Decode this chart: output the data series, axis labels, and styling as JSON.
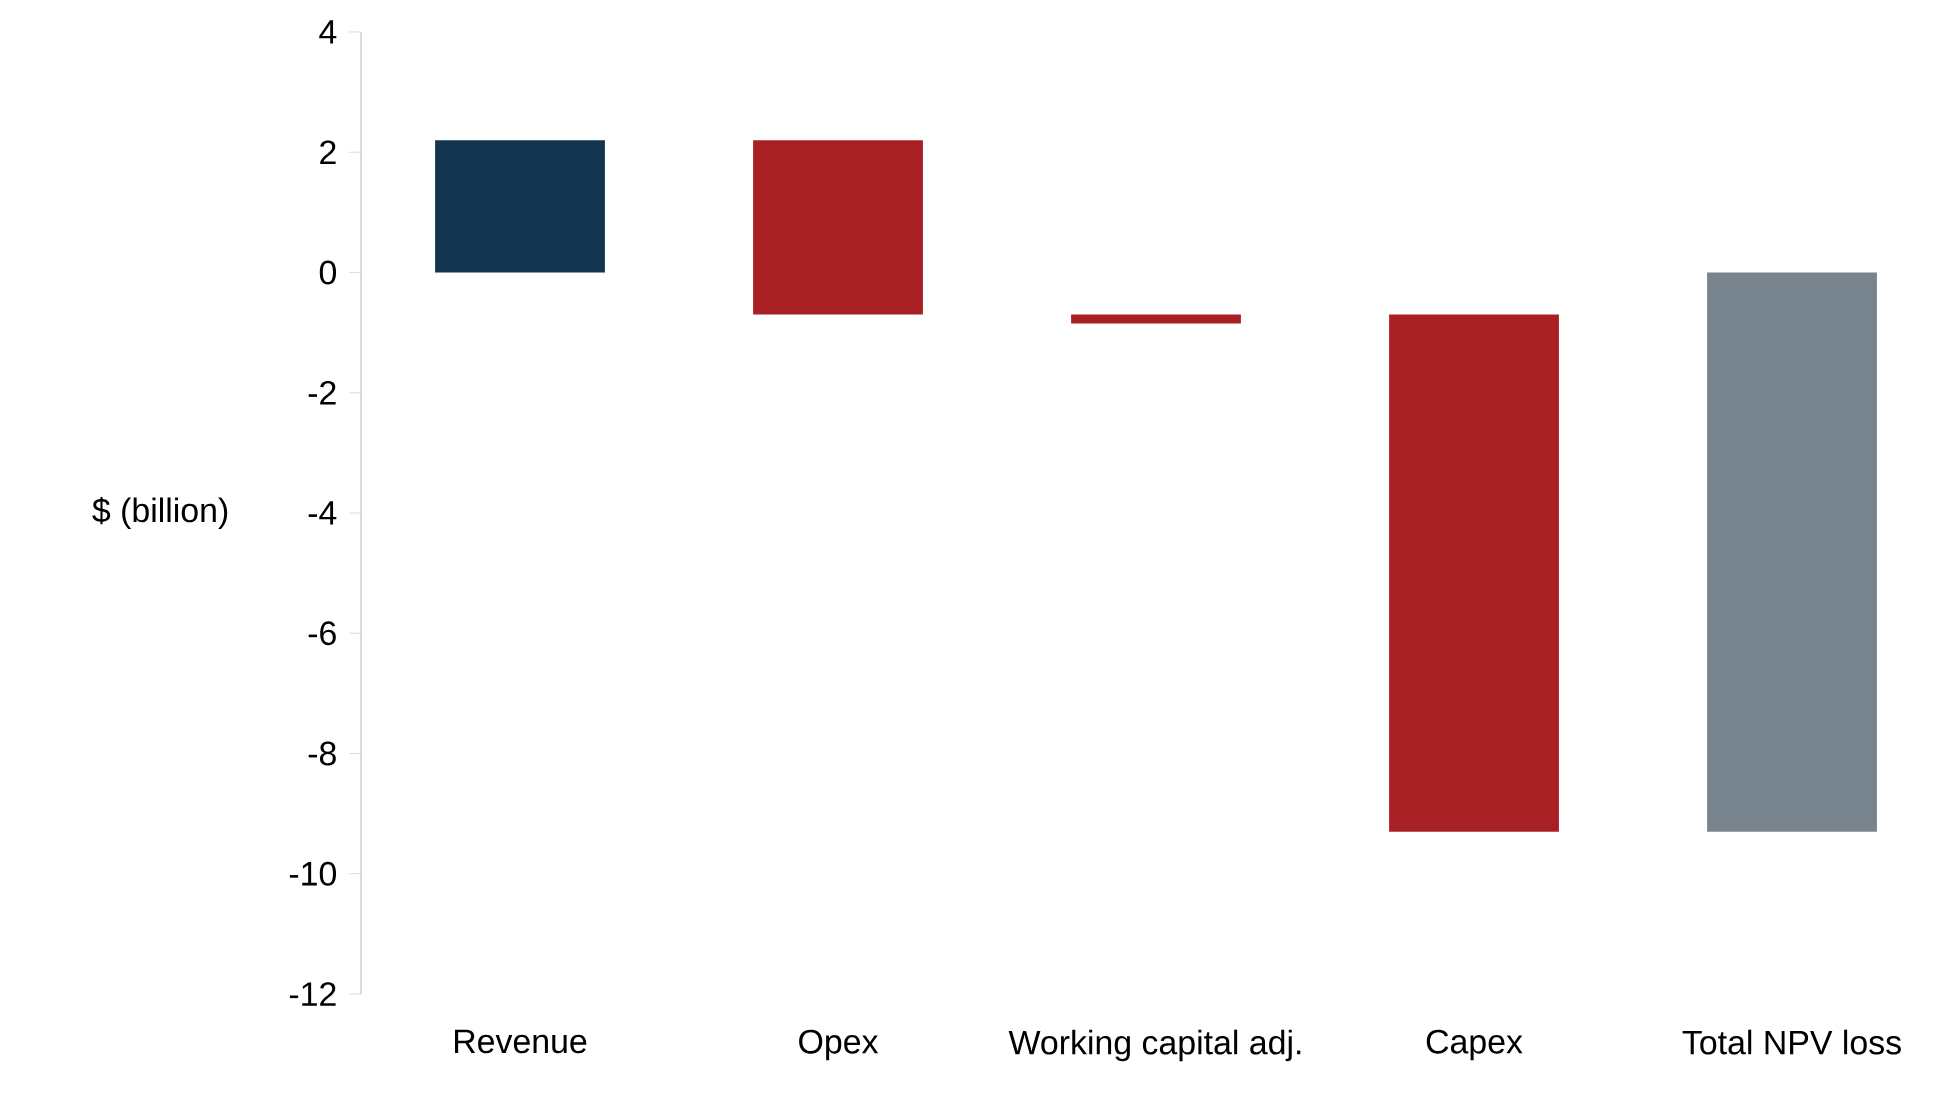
{
  "chart_data": {
    "type": "bar",
    "ylabel": "$ (billion)",
    "categories": [
      "Revenue",
      "Opex",
      "Working capital adj.",
      "Capex",
      "Total NPV loss"
    ],
    "values": [
      2.2,
      -2.9,
      -0.15,
      -8.6,
      -9.3
    ],
    "base": [
      0,
      2.2,
      -0.7,
      -0.7,
      0
    ],
    "colors": [
      "#12344f",
      "#a81f24",
      "#a81f24",
      "#a81f24",
      "#77838d"
    ],
    "ylim": [
      -12,
      4
    ],
    "yticks": [
      -12,
      -10,
      -8,
      -6,
      -4,
      -2,
      0,
      2,
      4
    ],
    "grid": false
  }
}
